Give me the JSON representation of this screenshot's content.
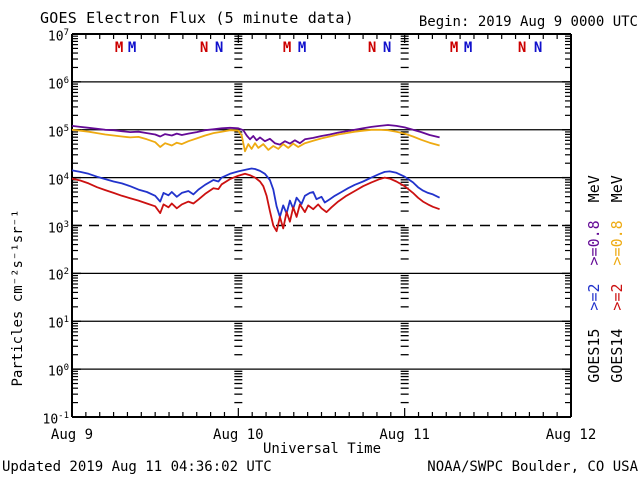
{
  "header": {
    "title": "GOES Electron Flux (5 minute data)",
    "begin_label": "Begin: 2019 Aug 9 0000 UTC"
  },
  "footer": {
    "updated": "Updated 2019 Aug 11 04:36:02 UTC",
    "source": "NOAA/SWPC Boulder, CO USA"
  },
  "axes": {
    "x_label": "Universal Time",
    "y_label": "Particles cm⁻²s⁻¹sr⁻¹",
    "x_ticks": [
      {
        "t": 0,
        "label": "Aug 9"
      },
      {
        "t": 1,
        "label": "Aug 10"
      },
      {
        "t": 2,
        "label": "Aug 11"
      },
      {
        "t": 3,
        "label": "Aug 12"
      }
    ],
    "y_exponents": [
      7,
      6,
      5,
      4,
      3,
      2,
      1,
      0,
      -1
    ],
    "dashed_exponent": 3,
    "day_boundary_columns_t": [
      1,
      2
    ]
  },
  "local_time_markers": [
    {
      "t": 0.283,
      "label": "M",
      "color": "#CC0000"
    },
    {
      "t": 0.361,
      "label": "M",
      "color": "#1111CC"
    },
    {
      "t": 0.794,
      "label": "N",
      "color": "#CC0000"
    },
    {
      "t": 0.884,
      "label": "N",
      "color": "#1111CC"
    },
    {
      "t": 1.293,
      "label": "M",
      "color": "#CC0000"
    },
    {
      "t": 1.383,
      "label": "M",
      "color": "#1111CC"
    },
    {
      "t": 1.804,
      "label": "N",
      "color": "#CC0000"
    },
    {
      "t": 1.894,
      "label": "N",
      "color": "#1111CC"
    },
    {
      "t": 2.297,
      "label": "M",
      "color": "#CC0000"
    },
    {
      "t": 2.381,
      "label": "M",
      "color": "#1111CC"
    },
    {
      "t": 2.706,
      "label": "N",
      "color": "#CC0000"
    },
    {
      "t": 2.802,
      "label": "N",
      "color": "#1111CC"
    }
  ],
  "legend": {
    "columns": [
      {
        "satellite": "GOES15",
        "ge2": ">=2",
        "ge08": ">=0.8",
        "unit": "MeV",
        "ge2_color": "#2233CC",
        "ge08_color": "#640A96"
      },
      {
        "satellite": "GOES14",
        "ge2": ">=2",
        "ge08": ">=0.8",
        "unit": "MeV",
        "ge2_color": "#CC1111",
        "ge08_color": "#EEAA11"
      }
    ]
  },
  "chart_data": {
    "type": "line",
    "title": "GOES Electron Flux (5 minute data)",
    "xlabel": "Universal Time",
    "ylabel": "Particles cm-2 s-1 sr-1",
    "x_unit": "days since 2019 Aug 9 0000 UTC",
    "x_range_days": [
      0,
      3
    ],
    "y_scale": "log10",
    "y_log_range": [
      -1,
      7
    ],
    "alert_threshold_log10": 3,
    "grid": "solid decade lines, dashed line at 1e3, minor log ticks at day boundaries",
    "legend_position": "right, rotated",
    "series": [
      {
        "name": "GOES15 >=0.8 MeV",
        "color": "#640A96",
        "points_t_log10flux": [
          [
            0,
            5.08
          ],
          [
            0.05,
            5.06
          ],
          [
            0.1,
            5.04
          ],
          [
            0.15,
            5.02
          ],
          [
            0.2,
            5.0
          ],
          [
            0.25,
            4.99
          ],
          [
            0.3,
            4.97
          ],
          [
            0.35,
            4.95
          ],
          [
            0.4,
            4.96
          ],
          [
            0.45,
            4.93
          ],
          [
            0.5,
            4.9
          ],
          [
            0.53,
            4.86
          ],
          [
            0.56,
            4.91
          ],
          [
            0.6,
            4.88
          ],
          [
            0.63,
            4.92
          ],
          [
            0.66,
            4.89
          ],
          [
            0.7,
            4.92
          ],
          [
            0.75,
            4.95
          ],
          [
            0.8,
            4.99
          ],
          [
            0.85,
            5.01
          ],
          [
            0.9,
            5.03
          ],
          [
            0.95,
            5.04
          ],
          [
            1.0,
            5.03
          ],
          [
            1.03,
            4.99
          ],
          [
            1.05,
            4.88
          ],
          [
            1.07,
            4.8
          ],
          [
            1.09,
            4.87
          ],
          [
            1.11,
            4.78
          ],
          [
            1.13,
            4.84
          ],
          [
            1.16,
            4.76
          ],
          [
            1.19,
            4.81
          ],
          [
            1.22,
            4.72
          ],
          [
            1.25,
            4.69
          ],
          [
            1.28,
            4.76
          ],
          [
            1.31,
            4.71
          ],
          [
            1.34,
            4.78
          ],
          [
            1.37,
            4.72
          ],
          [
            1.4,
            4.8
          ],
          [
            1.45,
            4.83
          ],
          [
            1.5,
            4.87
          ],
          [
            1.55,
            4.9
          ],
          [
            1.6,
            4.94
          ],
          [
            1.65,
            4.97
          ],
          [
            1.7,
            5.0
          ],
          [
            1.75,
            5.03
          ],
          [
            1.8,
            5.06
          ],
          [
            1.85,
            5.08
          ],
          [
            1.9,
            5.1
          ],
          [
            1.95,
            5.08
          ],
          [
            2.0,
            5.05
          ],
          [
            2.05,
            5.0
          ],
          [
            2.1,
            4.95
          ],
          [
            2.15,
            4.89
          ],
          [
            2.21,
            4.84
          ]
        ]
      },
      {
        "name": "GOES14 >=0.8 MeV",
        "color": "#EEAA11",
        "points_t_log10flux": [
          [
            0,
            5.0
          ],
          [
            0.05,
            4.98
          ],
          [
            0.1,
            4.96
          ],
          [
            0.15,
            4.93
          ],
          [
            0.2,
            4.9
          ],
          [
            0.25,
            4.88
          ],
          [
            0.3,
            4.86
          ],
          [
            0.35,
            4.84
          ],
          [
            0.4,
            4.85
          ],
          [
            0.45,
            4.8
          ],
          [
            0.5,
            4.74
          ],
          [
            0.53,
            4.64
          ],
          [
            0.56,
            4.72
          ],
          [
            0.6,
            4.67
          ],
          [
            0.63,
            4.73
          ],
          [
            0.66,
            4.7
          ],
          [
            0.7,
            4.76
          ],
          [
            0.75,
            4.82
          ],
          [
            0.8,
            4.88
          ],
          [
            0.85,
            4.93
          ],
          [
            0.9,
            4.96
          ],
          [
            0.95,
            4.99
          ],
          [
            1.0,
            4.98
          ],
          [
            1.02,
            4.88
          ],
          [
            1.04,
            4.55
          ],
          [
            1.06,
            4.7
          ],
          [
            1.08,
            4.6
          ],
          [
            1.1,
            4.72
          ],
          [
            1.12,
            4.62
          ],
          [
            1.15,
            4.7
          ],
          [
            1.18,
            4.58
          ],
          [
            1.21,
            4.66
          ],
          [
            1.24,
            4.6
          ],
          [
            1.27,
            4.7
          ],
          [
            1.3,
            4.62
          ],
          [
            1.33,
            4.71
          ],
          [
            1.36,
            4.64
          ],
          [
            1.4,
            4.72
          ],
          [
            1.45,
            4.77
          ],
          [
            1.5,
            4.82
          ],
          [
            1.55,
            4.86
          ],
          [
            1.6,
            4.9
          ],
          [
            1.65,
            4.93
          ],
          [
            1.7,
            4.96
          ],
          [
            1.75,
            4.98
          ],
          [
            1.8,
            5.0
          ],
          [
            1.85,
            5.0
          ],
          [
            1.9,
            4.99
          ],
          [
            1.95,
            4.96
          ],
          [
            2.0,
            4.92
          ],
          [
            2.05,
            4.86
          ],
          [
            2.1,
            4.79
          ],
          [
            2.15,
            4.73
          ],
          [
            2.21,
            4.67
          ]
        ]
      },
      {
        "name": "GOES15 >=2 MeV",
        "color": "#2233CC",
        "points_t_log10flux": [
          [
            0,
            4.15
          ],
          [
            0.05,
            4.12
          ],
          [
            0.1,
            4.08
          ],
          [
            0.15,
            4.02
          ],
          [
            0.2,
            3.97
          ],
          [
            0.25,
            3.92
          ],
          [
            0.3,
            3.88
          ],
          [
            0.35,
            3.82
          ],
          [
            0.4,
            3.75
          ],
          [
            0.45,
            3.7
          ],
          [
            0.5,
            3.62
          ],
          [
            0.53,
            3.5
          ],
          [
            0.55,
            3.68
          ],
          [
            0.58,
            3.63
          ],
          [
            0.6,
            3.7
          ],
          [
            0.63,
            3.6
          ],
          [
            0.66,
            3.68
          ],
          [
            0.7,
            3.72
          ],
          [
            0.73,
            3.65
          ],
          [
            0.76,
            3.75
          ],
          [
            0.8,
            3.85
          ],
          [
            0.85,
            3.95
          ],
          [
            0.88,
            3.92
          ],
          [
            0.9,
            4.0
          ],
          [
            0.95,
            4.08
          ],
          [
            1.0,
            4.13
          ],
          [
            1.05,
            4.17
          ],
          [
            1.08,
            4.19
          ],
          [
            1.1,
            4.18
          ],
          [
            1.13,
            4.14
          ],
          [
            1.16,
            4.08
          ],
          [
            1.19,
            3.95
          ],
          [
            1.21,
            3.75
          ],
          [
            1.23,
            3.4
          ],
          [
            1.25,
            3.18
          ],
          [
            1.27,
            3.42
          ],
          [
            1.29,
            3.25
          ],
          [
            1.31,
            3.52
          ],
          [
            1.33,
            3.35
          ],
          [
            1.35,
            3.58
          ],
          [
            1.38,
            3.45
          ],
          [
            1.4,
            3.62
          ],
          [
            1.43,
            3.68
          ],
          [
            1.45,
            3.7
          ],
          [
            1.47,
            3.55
          ],
          [
            1.5,
            3.6
          ],
          [
            1.52,
            3.48
          ],
          [
            1.55,
            3.55
          ],
          [
            1.58,
            3.62
          ],
          [
            1.62,
            3.7
          ],
          [
            1.66,
            3.78
          ],
          [
            1.7,
            3.85
          ],
          [
            1.75,
            3.92
          ],
          [
            1.8,
            4.0
          ],
          [
            1.85,
            4.08
          ],
          [
            1.88,
            4.12
          ],
          [
            1.91,
            4.13
          ],
          [
            1.95,
            4.1
          ],
          [
            2.0,
            4.02
          ],
          [
            2.05,
            3.9
          ],
          [
            2.08,
            3.8
          ],
          [
            2.11,
            3.73
          ],
          [
            2.14,
            3.68
          ],
          [
            2.17,
            3.65
          ],
          [
            2.21,
            3.58
          ]
        ]
      },
      {
        "name": "GOES14 >=2 MeV",
        "color": "#CC1111",
        "points_t_log10flux": [
          [
            0,
            3.98
          ],
          [
            0.05,
            3.94
          ],
          [
            0.1,
            3.88
          ],
          [
            0.15,
            3.8
          ],
          [
            0.2,
            3.74
          ],
          [
            0.25,
            3.68
          ],
          [
            0.3,
            3.62
          ],
          [
            0.35,
            3.57
          ],
          [
            0.4,
            3.52
          ],
          [
            0.45,
            3.46
          ],
          [
            0.5,
            3.4
          ],
          [
            0.53,
            3.26
          ],
          [
            0.55,
            3.44
          ],
          [
            0.58,
            3.38
          ],
          [
            0.6,
            3.46
          ],
          [
            0.63,
            3.36
          ],
          [
            0.66,
            3.44
          ],
          [
            0.7,
            3.5
          ],
          [
            0.73,
            3.46
          ],
          [
            0.76,
            3.54
          ],
          [
            0.8,
            3.66
          ],
          [
            0.85,
            3.78
          ],
          [
            0.88,
            3.76
          ],
          [
            0.9,
            3.86
          ],
          [
            0.95,
            3.97
          ],
          [
            1.0,
            4.04
          ],
          [
            1.04,
            4.08
          ],
          [
            1.07,
            4.05
          ],
          [
            1.1,
            4.0
          ],
          [
            1.13,
            3.92
          ],
          [
            1.15,
            3.82
          ],
          [
            1.17,
            3.62
          ],
          [
            1.19,
            3.3
          ],
          [
            1.21,
            3.0
          ],
          [
            1.23,
            2.88
          ],
          [
            1.25,
            3.18
          ],
          [
            1.27,
            2.94
          ],
          [
            1.29,
            3.28
          ],
          [
            1.31,
            3.08
          ],
          [
            1.33,
            3.38
          ],
          [
            1.35,
            3.18
          ],
          [
            1.37,
            3.44
          ],
          [
            1.4,
            3.28
          ],
          [
            1.42,
            3.42
          ],
          [
            1.45,
            3.34
          ],
          [
            1.48,
            3.44
          ],
          [
            1.5,
            3.36
          ],
          [
            1.53,
            3.28
          ],
          [
            1.56,
            3.38
          ],
          [
            1.6,
            3.5
          ],
          [
            1.65,
            3.62
          ],
          [
            1.7,
            3.72
          ],
          [
            1.75,
            3.82
          ],
          [
            1.8,
            3.9
          ],
          [
            1.85,
            3.97
          ],
          [
            1.88,
            4.0
          ],
          [
            1.91,
            3.98
          ],
          [
            1.95,
            3.92
          ],
          [
            2.0,
            3.82
          ],
          [
            2.05,
            3.68
          ],
          [
            2.08,
            3.58
          ],
          [
            2.11,
            3.5
          ],
          [
            2.14,
            3.44
          ],
          [
            2.17,
            3.39
          ],
          [
            2.21,
            3.34
          ]
        ]
      }
    ]
  }
}
